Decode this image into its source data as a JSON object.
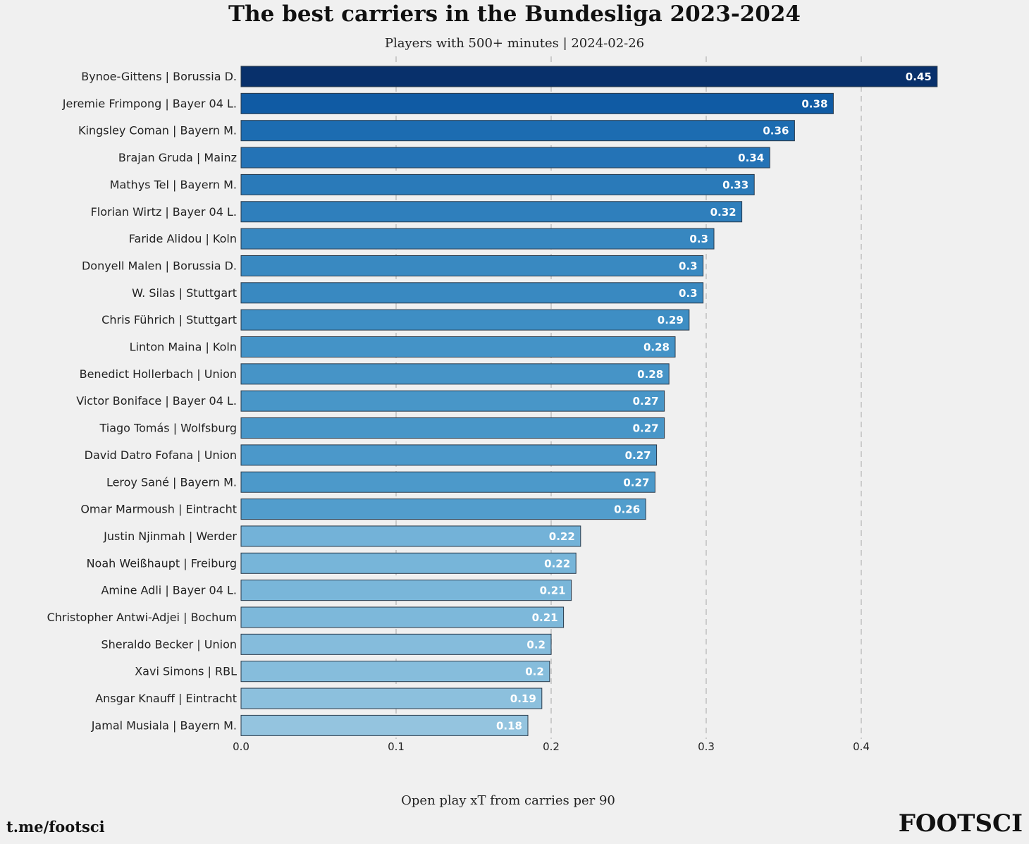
{
  "chart_data": {
    "type": "bar",
    "orientation": "horizontal",
    "title": "The best carriers in the Bundesliga 2023-2024",
    "subtitle": "Players with 500+ minutes | 2024-02-26",
    "xlabel": "Open play xT from carries per 90",
    "ylabel": "",
    "xlim": [
      0,
      0.47
    ],
    "xticks": [
      "0.0",
      "0.1",
      "0.2",
      "0.3",
      "0.4"
    ],
    "xtick_values": [
      0.0,
      0.1,
      0.2,
      0.3,
      0.4
    ],
    "grid": "vertical dashed",
    "colormap": "Blues",
    "categories": [
      "Bynoe-Gittens | Borussia D.",
      "Jeremie Frimpong | Bayer 04 L.",
      "Kingsley Coman | Bayern M.",
      "Brajan Gruda | Mainz",
      "Mathys Tel | Bayern M.",
      "Florian Wirtz | Bayer 04 L.",
      "Faride Alidou | Koln",
      "Donyell Malen | Borussia D.",
      "W. Silas | Stuttgart",
      "Chris Führich | Stuttgart",
      "Linton Maina | Koln",
      "Benedict Hollerbach | Union",
      "Victor Boniface | Bayer 04 L.",
      "Tiago Tomás | Wolfsburg",
      "David Datro Fofana | Union",
      "Leroy Sané | Bayern M.",
      "Omar Marmoush | Eintracht",
      "Justin Njinmah | Werder",
      "Noah Weißhaupt | Freiburg",
      "Amine Adli | Bayer 04 L.",
      "Christopher Antwi-Adjei | Bochum",
      "Sheraldo Becker | Union",
      "Xavi Simons | RBL",
      "Ansgar Knauff | Eintracht",
      "Jamal Musiala | Bayern M."
    ],
    "values": [
      0.449,
      0.382,
      0.357,
      0.341,
      0.331,
      0.323,
      0.305,
      0.298,
      0.298,
      0.289,
      0.28,
      0.276,
      0.273,
      0.273,
      0.268,
      0.267,
      0.261,
      0.219,
      0.216,
      0.213,
      0.208,
      0.2,
      0.199,
      0.194,
      0.185
    ],
    "data_labels": [
      "0.45",
      "0.38",
      "0.36",
      "0.34",
      "0.33",
      "0.32",
      "0.3",
      "0.3",
      "0.3",
      "0.29",
      "0.28",
      "0.28",
      "0.27",
      "0.27",
      "0.27",
      "0.27",
      "0.26",
      "0.22",
      "0.22",
      "0.21",
      "0.21",
      "0.2",
      "0.2",
      "0.19",
      "0.18"
    ],
    "colors": [
      "#08306b",
      "#105ba4",
      "#1c6cb1",
      "#2473b6",
      "#2a7ab9",
      "#2f7fbc",
      "#3787c0",
      "#3989c1",
      "#3989c1",
      "#3e8ec4",
      "#4493c7",
      "#4694c7",
      "#4896c8",
      "#4896c8",
      "#4b98ca",
      "#4c99ca",
      "#529dcc",
      "#73b2d8",
      "#77b5d9",
      "#79b6d9",
      "#7db8da",
      "#85bcdc",
      "#86bddc",
      "#8cc0dd",
      "#94c4df"
    ]
  },
  "footer": {
    "left": "t.me/footsci",
    "right": "FOOTSCI"
  }
}
